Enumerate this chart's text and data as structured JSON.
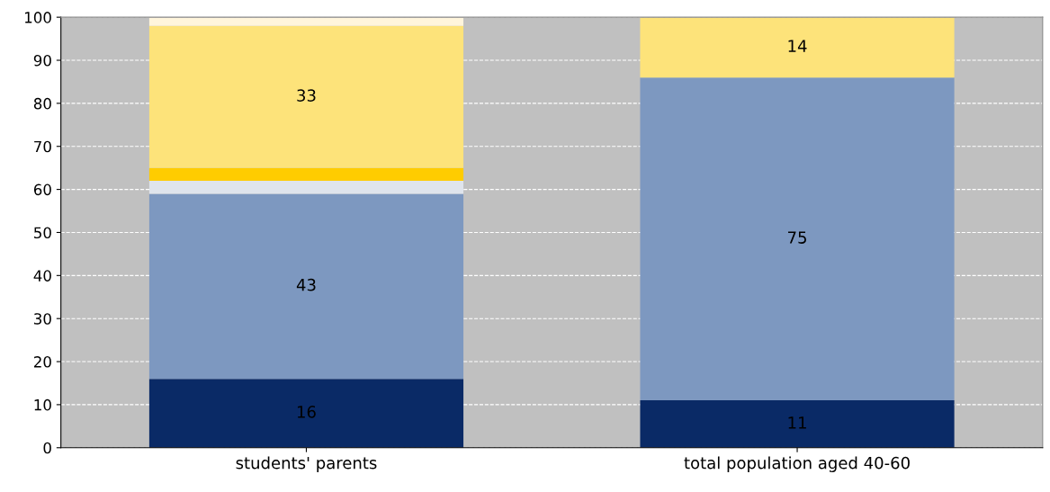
{
  "chart_data": {
    "type": "bar",
    "stacked": true,
    "categories": [
      "students' parents",
      "total population aged 40-60"
    ],
    "series": [
      {
        "color": "#0a2a66",
        "values": [
          16,
          11
        ],
        "value_labels": [
          "16",
          "11"
        ]
      },
      {
        "color": "#7d98c0",
        "values": [
          43,
          75
        ],
        "value_labels": [
          "43",
          "75"
        ]
      },
      {
        "color": "#dfe4ec",
        "values": [
          3,
          0
        ],
        "value_labels": [
          null,
          null
        ]
      },
      {
        "color": "#ffcc00",
        "values": [
          3,
          0
        ],
        "value_labels": [
          null,
          null
        ]
      },
      {
        "color": "#fde37a",
        "values": [
          33,
          14
        ],
        "value_labels": [
          "33",
          "14"
        ]
      },
      {
        "color": "#fff5dc",
        "values": [
          2,
          0
        ],
        "value_labels": [
          null,
          null
        ]
      }
    ],
    "ylim": [
      0,
      100
    ],
    "yticks": [
      0,
      10,
      20,
      30,
      40,
      50,
      60,
      70,
      80,
      90,
      100
    ],
    "grid": "y",
    "legend": false
  }
}
